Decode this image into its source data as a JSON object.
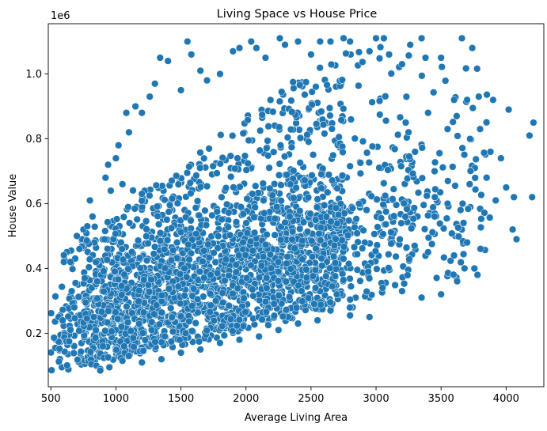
{
  "chart_data": {
    "type": "scatter",
    "title": "Living Space vs House Price",
    "xlabel": "Average Living Area",
    "ylabel": "House Value",
    "y_offset_label": "1e6",
    "xlim": [
      480,
      4290
    ],
    "ylim": [
      35000,
      1155000
    ],
    "x_ticks": [
      500,
      1000,
      1500,
      2000,
      2500,
      3000,
      3500,
      4000
    ],
    "x_tick_labels": [
      "500",
      "1000",
      "1500",
      "2000",
      "2500",
      "3000",
      "3500",
      "4000"
    ],
    "y_ticks": [
      200000,
      400000,
      600000,
      800000,
      1000000
    ],
    "y_tick_labels": [
      "0.2",
      "0.4",
      "0.6",
      "0.8",
      "1.0"
    ],
    "grid": false,
    "marker_color": "#1f77b4",
    "marker_edge": "#ffffff",
    "series": [
      {
        "points": [
          [
            560,
            250000
          ],
          [
            590,
            240000
          ],
          [
            620,
            175000
          ],
          [
            640,
            175000
          ],
          [
            600,
            420000
          ],
          [
            650,
            420000
          ],
          [
            660,
            330000
          ],
          [
            680,
            280000
          ],
          [
            700,
            500000
          ],
          [
            720,
            460000
          ],
          [
            750,
            520000
          ],
          [
            760,
            370000
          ],
          [
            780,
            530000
          ],
          [
            800,
            610000
          ],
          [
            820,
            560000
          ],
          [
            830,
            250000
          ],
          [
            850,
            100000
          ],
          [
            880,
            90000
          ],
          [
            900,
            160000
          ],
          [
            920,
            680000
          ],
          [
            940,
            720000
          ],
          [
            960,
            640000
          ],
          [
            1000,
            740000
          ],
          [
            1020,
            780000
          ],
          [
            1050,
            660000
          ],
          [
            1080,
            880000
          ],
          [
            1100,
            820000
          ],
          [
            1150,
            900000
          ],
          [
            1200,
            880000
          ],
          [
            1260,
            930000
          ],
          [
            1300,
            970000
          ],
          [
            1340,
            1050000
          ],
          [
            1400,
            1040000
          ],
          [
            1500,
            950000
          ],
          [
            1550,
            1100000
          ],
          [
            1580,
            1060000
          ],
          [
            1650,
            1010000
          ],
          [
            1700,
            980000
          ],
          [
            1800,
            1000000
          ],
          [
            1900,
            1070000
          ],
          [
            1950,
            1080000
          ],
          [
            2040,
            1100000
          ],
          [
            2080,
            1080000
          ],
          [
            2150,
            1050000
          ],
          [
            2260,
            1110000
          ],
          [
            2300,
            1090000
          ],
          [
            2400,
            1100000
          ],
          [
            2500,
            1060000
          ],
          [
            2570,
            1100000
          ],
          [
            2650,
            1100000
          ],
          [
            2750,
            1110000
          ],
          [
            2800,
            1100000
          ],
          [
            2950,
            1070000
          ],
          [
            3000,
            1110000
          ],
          [
            3060,
            1110000
          ],
          [
            3100,
            1060000
          ],
          [
            3200,
            1030000
          ],
          [
            3350,
            1110000
          ],
          [
            3380,
            1050000
          ],
          [
            3500,
            1050000
          ],
          [
            3600,
            920000
          ],
          [
            3660,
            1110000
          ],
          [
            3700,
            920000
          ],
          [
            3740,
            1080000
          ],
          [
            3790,
            930000
          ],
          [
            3800,
            830000
          ],
          [
            3850,
            680000
          ],
          [
            3880,
            760000
          ],
          [
            3900,
            920000
          ],
          [
            3920,
            610000
          ],
          [
            3960,
            740000
          ],
          [
            4000,
            650000
          ],
          [
            4020,
            890000
          ],
          [
            4050,
            520000
          ],
          [
            4060,
            620000
          ],
          [
            4080,
            490000
          ],
          [
            4180,
            810000
          ],
          [
            4200,
            620000
          ],
          [
            4210,
            850000
          ],
          [
            3780,
            380000
          ],
          [
            3680,
            400000
          ],
          [
            3600,
            440000
          ],
          [
            3500,
            320000
          ],
          [
            3350,
            310000
          ],
          [
            3200,
            330000
          ],
          [
            3050,
            340000
          ],
          [
            2950,
            250000
          ],
          [
            2800,
            255000
          ],
          [
            2650,
            270000
          ],
          [
            2550,
            240000
          ],
          [
            2400,
            230000
          ],
          [
            2250,
            210000
          ],
          [
            2100,
            190000
          ],
          [
            1950,
            180000
          ],
          [
            1800,
            170000
          ],
          [
            1650,
            150000
          ],
          [
            1500,
            140000
          ],
          [
            1350,
            120000
          ],
          [
            1200,
            110000
          ],
          [
            1050,
            115000
          ],
          [
            950,
            95000
          ],
          [
            880,
            85000
          ],
          [
            3400,
            450000
          ],
          [
            3450,
            560000
          ],
          [
            3550,
            600000
          ],
          [
            3650,
            580000
          ],
          [
            3720,
            660000
          ],
          [
            3700,
            480000
          ],
          [
            3450,
            700000
          ],
          [
            3300,
            760000
          ],
          [
            3250,
            820000
          ],
          [
            3400,
            880000
          ],
          [
            3550,
            830000
          ],
          [
            3620,
            870000
          ]
        ]
      }
    ]
  }
}
